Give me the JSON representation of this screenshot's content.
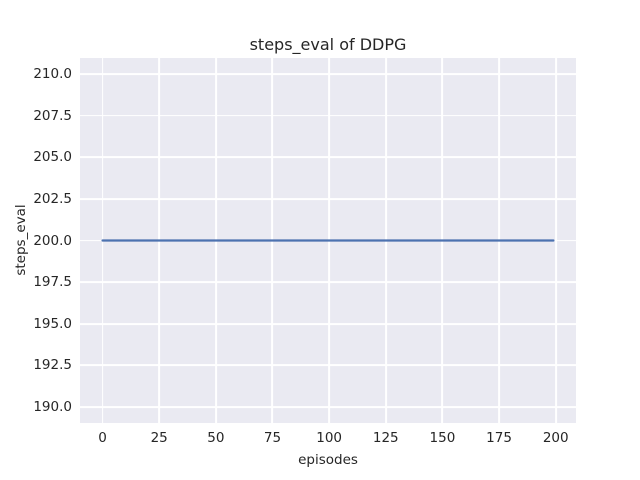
{
  "colors": {
    "figure_background": "#ffffff",
    "axes_background": "#eaeaf2",
    "gridline": "#ffffff",
    "text": "#262626",
    "line": "#4c72b0"
  },
  "chart_data": {
    "type": "line",
    "title": "steps_eval of DDPG",
    "xlabel": "episodes",
    "ylabel": "steps_eval",
    "grid": true,
    "legend": false,
    "style": "seaborn-darkgrid",
    "xlim": [
      -9.95,
      208.95
    ],
    "ylim": [
      189.04,
      210.96
    ],
    "xticks": [
      {
        "v": 0,
        "label": "0"
      },
      {
        "v": 25,
        "label": "25"
      },
      {
        "v": 50,
        "label": "50"
      },
      {
        "v": 75,
        "label": "75"
      },
      {
        "v": 100,
        "label": "100"
      },
      {
        "v": 125,
        "label": "125"
      },
      {
        "v": 150,
        "label": "150"
      },
      {
        "v": 175,
        "label": "175"
      },
      {
        "v": 200,
        "label": "200"
      }
    ],
    "yticks": [
      {
        "v": 190,
        "label": "190.0"
      },
      {
        "v": 192.5,
        "label": "192.5"
      },
      {
        "v": 195,
        "label": "195.0"
      },
      {
        "v": 197.5,
        "label": "197.5"
      },
      {
        "v": 200,
        "label": "200.0"
      },
      {
        "v": 202.5,
        "label": "202.5"
      },
      {
        "v": 205,
        "label": "205.0"
      },
      {
        "v": 207.5,
        "label": "207.5"
      },
      {
        "v": 210,
        "label": "210.0"
      }
    ],
    "series": [
      {
        "name": "steps_eval",
        "color": "#4c72b0",
        "x": [
          0,
          199
        ],
        "y": [
          200,
          200
        ],
        "constant_value": 200
      }
    ]
  }
}
